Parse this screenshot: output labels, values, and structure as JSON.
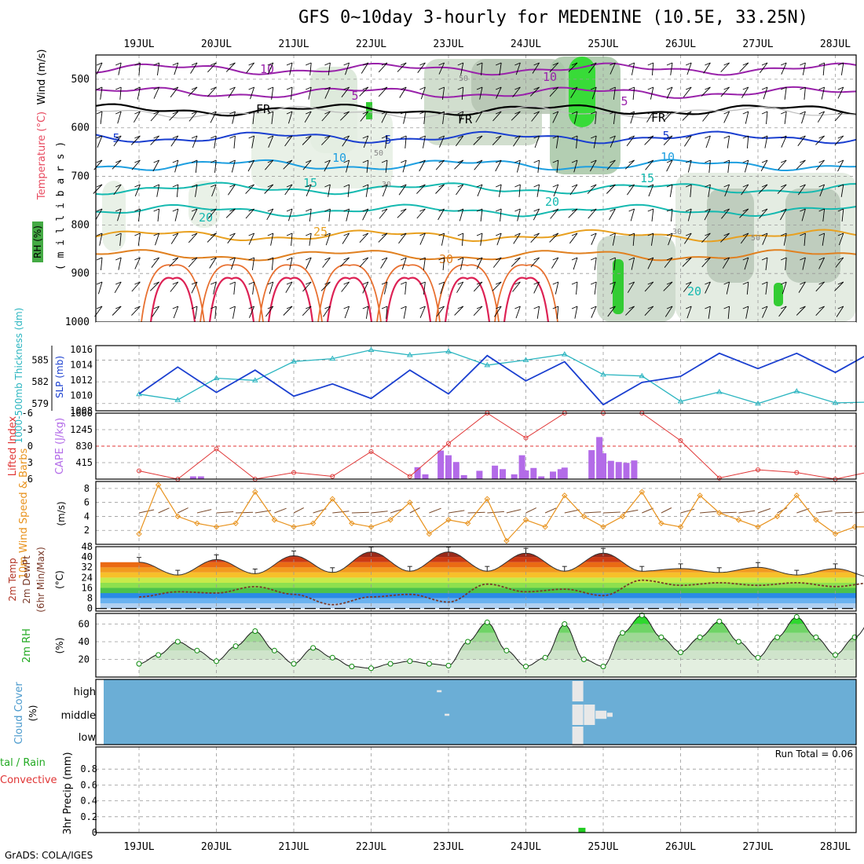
{
  "title": "GFS 0~10day 3-hourly for MEDENINE (10.5E, 33.25N)",
  "footer": "GrADS: COLA/IGES",
  "days": [
    "19JUL",
    "20JUL",
    "21JUL",
    "22JUL",
    "23JUL",
    "24JUL",
    "25JUL",
    "26JUL",
    "27JUL",
    "28JUL"
  ],
  "colors": {
    "frame": "#000000",
    "grid": "#999999",
    "thickness": "#2bb5c0",
    "slp": "#1a3fd0",
    "lifted_index": "#e03535",
    "cape": "#b36be8",
    "wind_speed": "#e8921c",
    "wind_barb": "#7a4a2a",
    "rh_line": "#0a8a0a",
    "cloud_bg": "#6baed6",
    "cloud_fill": "#e8e8e8",
    "precip": "#22cc22"
  },
  "panels": {
    "upper": {
      "label_rh": "RH (%)",
      "label_temp": "Temperature (°C)",
      "label_wind": "Wind (m/s)",
      "ylabel": "( m i l l i b a r s )",
      "yticks": [
        "500",
        "600",
        "700",
        "800",
        "900",
        "1000"
      ],
      "contour_labels": [
        "10",
        "10",
        "5",
        "5",
        "FR",
        "FR",
        "FR",
        "5",
        "5",
        "5",
        "10",
        "10",
        "15",
        "15",
        "20",
        "20",
        "25",
        "30",
        "30",
        "50",
        "50",
        "50",
        "30",
        "20"
      ]
    },
    "slp": {
      "ylabel_left": "1000-500mb Thickness (dm)",
      "ylabel_right": "SLP (mb)",
      "yticks_left": [
        "585",
        "582",
        "579"
      ],
      "yticks_right": [
        "1016",
        "1014",
        "1012",
        "1010",
        "1008"
      ]
    },
    "li": {
      "ylabel_left": "Lifted Index",
      "ylabel_right": "CAPE (J/kg)",
      "yticks_left": [
        "-6",
        "-3",
        "0",
        "3",
        "6"
      ],
      "yticks_right": [
        "1660",
        "1245",
        "830",
        "415"
      ]
    },
    "wind": {
      "ylabel": "10m Wind Speed & Barbs",
      "yunit": "(m/s)",
      "yticks": [
        "8",
        "6",
        "4",
        "2"
      ]
    },
    "temp": {
      "ylabel": "2m Temp 2m DewPt (6hr Min/Max)",
      "yunit": "(°C)",
      "yticks": [
        "48",
        "40",
        "32",
        "24",
        "16",
        "8",
        "0"
      ]
    },
    "rh": {
      "ylabel": "2m RH",
      "yunit": "(%)",
      "yticks": [
        "60",
        "40",
        "20"
      ]
    },
    "cloud": {
      "ylabel": "Cloud Cover",
      "yunit": "(%)",
      "levels": [
        "high",
        "middle",
        "low"
      ]
    },
    "precip": {
      "ylabel_total": "tal / Rain",
      "ylabel_conv": "Convective",
      "ylabel": "3hr Precip (mm)",
      "yticks": [
        "0.8",
        "0.6",
        "0.4",
        "0.2",
        "0"
      ],
      "run_total": "Run Total = 0.06"
    }
  },
  "chart_data": [
    {
      "type": "line",
      "title": "1000-500mb Thickness (dm) / SLP (mb)",
      "x_unit": "days since 19JUL 00Z",
      "series": [
        {
          "name": "1000-500mb Thickness (dm)",
          "axis": "left",
          "x": [
            0,
            0.5,
            1,
            1.5,
            2,
            2.5,
            3,
            3.5,
            4,
            4.5,
            5,
            5.5,
            6,
            6.5,
            7,
            7.5,
            8,
            8.5,
            9,
            9.5
          ],
          "values": [
            580.3,
            579.5,
            582.5,
            582.2,
            584.8,
            585.2,
            586.4,
            585.7,
            586.2,
            584.3,
            585.0,
            585.8,
            583.0,
            582.8,
            579.3,
            580.6,
            579.0,
            580.7,
            579.1,
            579.2
          ]
        },
        {
          "name": "SLP (mb)",
          "axis": "right",
          "x": [
            0,
            0.5,
            1,
            1.5,
            2,
            2.5,
            3,
            3.5,
            4,
            4.5,
            5,
            5.5,
            6,
            6.5,
            7,
            7.5,
            8,
            8.5,
            9,
            9.5
          ],
          "values": [
            1010.2,
            1013.7,
            1010.4,
            1013.3,
            1009.9,
            1011.5,
            1009.6,
            1013.3,
            1010.2,
            1015.2,
            1011.9,
            1014.4,
            1008.8,
            1011.7,
            1012.5,
            1015.5,
            1013.5,
            1015.5,
            1013.0,
            1015.8
          ]
        }
      ],
      "ylim_left": [
        578,
        587
      ],
      "ylim_right": [
        1008,
        1016.5
      ]
    },
    {
      "type": "bar",
      "title": "Lifted Index / CAPE (J/kg)",
      "series": [
        {
          "name": "Lifted Index",
          "kind": "line",
          "x": [
            0,
            0.5,
            1,
            1.5,
            2,
            2.5,
            3,
            3.5,
            4,
            4.5,
            5,
            5.5,
            6,
            6.5,
            7,
            7.5,
            8,
            8.5,
            9,
            9.5
          ],
          "values": [
            4.5,
            6,
            0.5,
            6,
            4.8,
            5.5,
            1.0,
            5.5,
            -0.5,
            -6,
            -1.5,
            -6,
            -6.5,
            -6,
            -1,
            5.8,
            4.3,
            4.8,
            6.5,
            4.5
          ]
        },
        {
          "name": "CAPE (J/kg)",
          "kind": "bar",
          "x": [
            0.7,
            0.8,
            3.6,
            3.7,
            3.9,
            4.0,
            4.1,
            4.2,
            4.4,
            4.6,
            4.7,
            4.85,
            4.95,
            5.0,
            5.1,
            5.2,
            5.35,
            5.45,
            5.5,
            5.6,
            5.85,
            5.95,
            6.0,
            6.1,
            6.2,
            6.3,
            6.4,
            6.5
          ],
          "values": [
            70,
            70,
            300,
            120,
            720,
            600,
            430,
            100,
            210,
            340,
            250,
            120,
            600,
            220,
            280,
            70,
            190,
            250,
            290,
            0,
            730,
            1060,
            650,
            460,
            430,
            410,
            470,
            0
          ]
        }
      ],
      "ylim_left": [
        -6,
        6
      ],
      "ylim_right": [
        0,
        1660
      ]
    },
    {
      "type": "line",
      "title": "10m Wind Speed (m/s)",
      "x": [
        0,
        0.25,
        0.5,
        0.75,
        1,
        1.25,
        1.5,
        1.75,
        2,
        2.25,
        2.5,
        2.75,
        3,
        3.25,
        3.5,
        3.75,
        4,
        4.25,
        4.5,
        4.75,
        5,
        5.25,
        5.5,
        5.75,
        6,
        6.25,
        6.5,
        6.75,
        7,
        7.25,
        7.5,
        7.75,
        8,
        8.25,
        8.5,
        8.75,
        9,
        9.25,
        9.5
      ],
      "values": [
        1.5,
        8.5,
        4.0,
        3.0,
        2.5,
        3.0,
        7.5,
        3.5,
        2.5,
        3.0,
        6.5,
        3.0,
        2.5,
        3.5,
        6.0,
        1.5,
        3.5,
        3.0,
        6.5,
        0.5,
        3.5,
        2.5,
        7.0,
        4.0,
        2.5,
        4.0,
        7.5,
        3.0,
        2.5,
        7.0,
        4.5,
        3.5,
        2.5,
        4.0,
        7.0,
        3.5,
        1.5,
        2.5,
        2.5
      ],
      "ylim": [
        0,
        9
      ]
    },
    {
      "type": "area",
      "title": "2m Temp / 2m DewPt (°C)",
      "series": [
        {
          "name": "2m Temp",
          "x": [
            0,
            0.5,
            1,
            1.5,
            2,
            2.5,
            3,
            3.5,
            4,
            4.5,
            5,
            5.5,
            6,
            6.5,
            7,
            7.5,
            8,
            8.5,
            9,
            9.5
          ],
          "values": [
            36,
            26,
            38,
            27,
            41,
            28,
            44,
            29,
            44,
            29,
            43,
            29,
            43,
            29,
            31,
            28,
            32,
            26,
            31,
            24
          ]
        },
        {
          "name": "2m DewPt",
          "x": [
            0,
            0.5,
            1,
            1.5,
            2,
            2.5,
            3,
            3.5,
            4,
            4.5,
            5,
            5.5,
            6,
            6.5,
            7,
            7.5,
            8,
            8.5,
            9,
            9.5
          ],
          "values": [
            9,
            13,
            12,
            17,
            11,
            3,
            9,
            11,
            5,
            19,
            13,
            15,
            10,
            22,
            18,
            20,
            18,
            20,
            17,
            20
          ]
        }
      ],
      "ylim": [
        0,
        48
      ]
    },
    {
      "type": "line",
      "title": "2m RH (%)",
      "x": [
        0,
        0.25,
        0.5,
        0.75,
        1,
        1.25,
        1.5,
        1.75,
        2,
        2.25,
        2.5,
        2.75,
        3,
        3.25,
        3.5,
        3.75,
        4,
        4.25,
        4.5,
        4.75,
        5,
        5.25,
        5.5,
        5.75,
        6,
        6.25,
        6.5,
        6.75,
        7,
        7.25,
        7.5,
        7.75,
        8,
        8.25,
        8.5,
        8.75,
        9,
        9.25,
        9.5
      ],
      "values": [
        15,
        25,
        40,
        30,
        18,
        35,
        52,
        30,
        15,
        33,
        22,
        12,
        10,
        15,
        18,
        15,
        13,
        40,
        62,
        30,
        12,
        22,
        60,
        20,
        12,
        50,
        70,
        45,
        28,
        45,
        63,
        40,
        22,
        45,
        68,
        45,
        25,
        45,
        68
      ],
      "ylim": [
        0,
        72
      ]
    },
    {
      "type": "heatmap",
      "title": "Cloud Cover (%)",
      "categories": [
        "high",
        "middle",
        "low"
      ],
      "cells": [
        {
          "x": 3.95,
          "level": "middle",
          "value": 10
        },
        {
          "x": 3.85,
          "level": "high",
          "value": 10
        },
        {
          "x": 5.6,
          "level": "high",
          "value": 100
        },
        {
          "x": 5.6,
          "level": "middle",
          "value": 100
        },
        {
          "x": 5.6,
          "level": "low",
          "value": 100
        },
        {
          "x": 5.75,
          "level": "middle",
          "value": 100
        },
        {
          "x": 5.9,
          "level": "middle",
          "value": 40
        },
        {
          "x": 6.05,
          "level": "middle",
          "value": 20
        }
      ]
    },
    {
      "type": "bar",
      "title": "3hr Precip (mm)",
      "x": [
        5.72
      ],
      "values": [
        0.06
      ],
      "ylim": [
        0,
        1.0
      ]
    }
  ]
}
